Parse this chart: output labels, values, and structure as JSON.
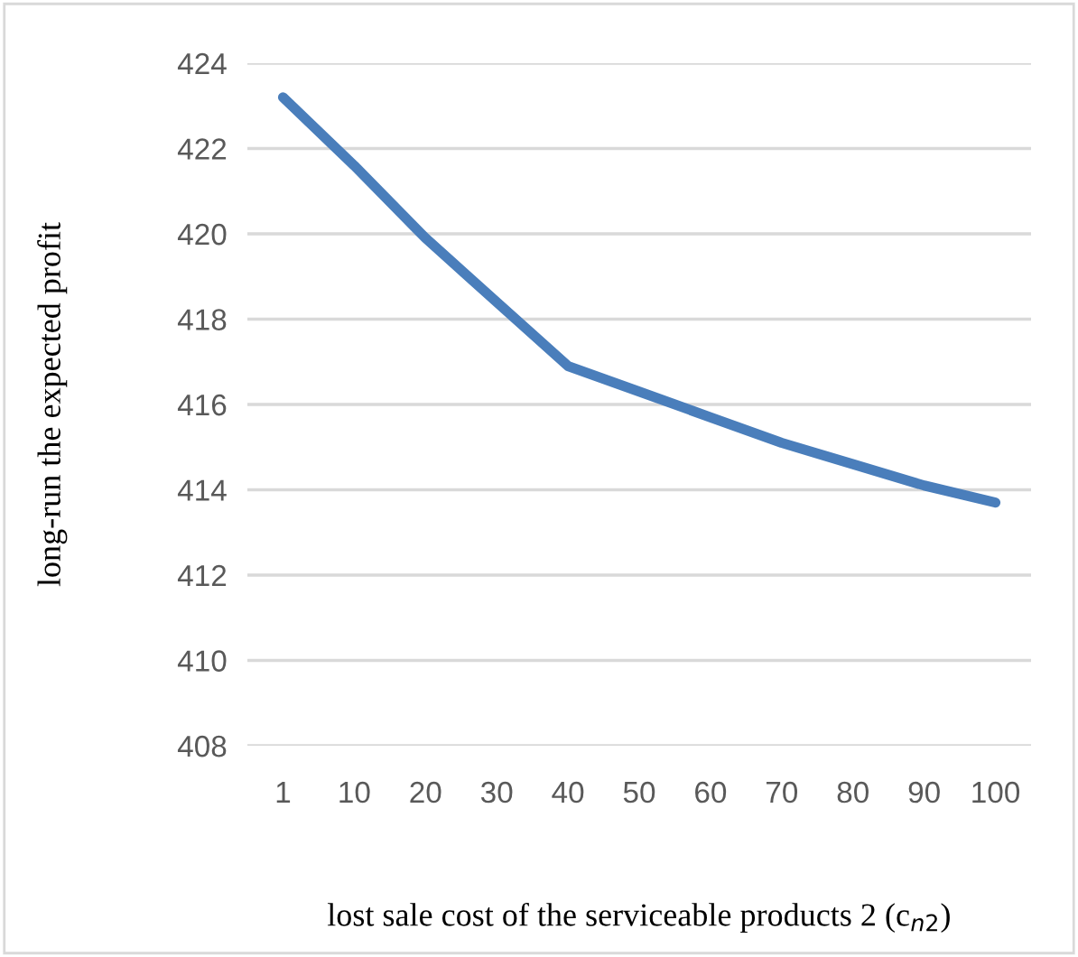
{
  "chart_data": {
    "type": "line",
    "xlabel": "lost sale cost of the serviceable products 2 (c$_{n2}$)",
    "ylabel": "long-run the expected profit",
    "categories": [
      "1",
      "10",
      "20",
      "30",
      "40",
      "50",
      "60",
      "70",
      "80",
      "90",
      "100"
    ],
    "series": [
      {
        "color": "#4a7ebb",
        "values": [
          423.2,
          421.6,
          419.9,
          418.4,
          416.9,
          416.3,
          415.7,
          415.1,
          414.6,
          414.1,
          413.7
        ]
      }
    ],
    "ylim": [
      408,
      424
    ],
    "yticks": [
      408,
      410,
      412,
      414,
      416,
      418,
      420,
      422,
      424
    ],
    "grid": "y",
    "legend": false,
    "marker": "none",
    "line_style": "solid"
  }
}
